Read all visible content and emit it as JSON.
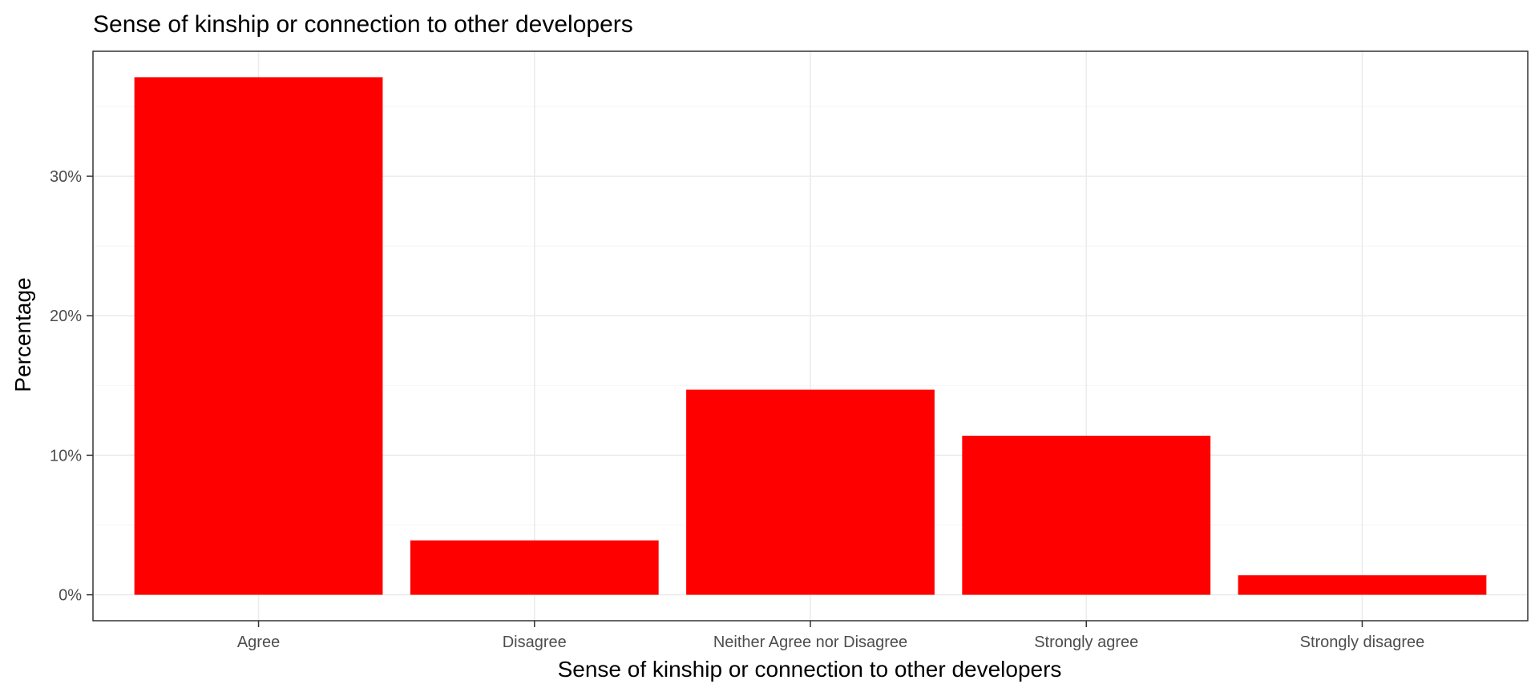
{
  "chart_data": {
    "type": "bar",
    "title": "Sense of kinship or connection to other developers",
    "xlabel": "Sense of kinship or connection to other developers",
    "ylabel": "Percentage",
    "categories": [
      "Agree",
      "Disagree",
      "Neither Agree nor Disagree",
      "Strongly agree",
      "Strongly disagree"
    ],
    "values": [
      37.1,
      3.9,
      14.7,
      11.4,
      1.4
    ],
    "ylim": [
      -1.86,
      38.96
    ],
    "yticks": [
      0,
      10,
      20,
      30
    ],
    "ytick_labels": [
      "0%",
      "10%",
      "20%",
      "30%"
    ],
    "grid": true,
    "bar_color": "#ff0000",
    "panel_border_color": "#333333",
    "major_grid_color": "#ebebeb",
    "minor_grid_color": "#f5f5f5"
  }
}
